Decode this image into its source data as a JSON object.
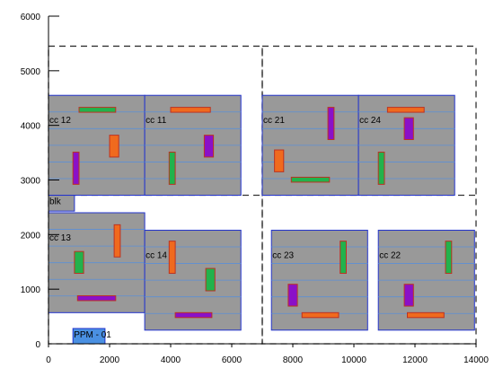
{
  "chart_data": {
    "type": "layout-diagram",
    "xlim": [
      0,
      14000
    ],
    "ylim": [
      0,
      6000
    ],
    "x_ticks": [
      "0",
      "2000",
      "4000",
      "6000",
      "8000",
      "10000",
      "12000",
      "14000"
    ],
    "y_ticks": [
      "0",
      "1000",
      "2000",
      "3000",
      "4000",
      "5000",
      "6000"
    ],
    "dashed_regions": [
      {
        "x0": 0,
        "x1": 7000,
        "y0": 0,
        "y1": 5450
      },
      {
        "x0": 7000,
        "x1": 14000,
        "y0": 0,
        "y1": 5450
      }
    ],
    "dashed_divider_y": 2720,
    "cells": [
      {
        "label": "cc 12",
        "x0": 0,
        "x1": 3150,
        "y0": 2720,
        "y1": 4550
      },
      {
        "label": "cc 11",
        "x0": 3150,
        "x1": 6300,
        "y0": 2720,
        "y1": 4550
      },
      {
        "label": "cc 21",
        "x0": 7000,
        "x1": 10150,
        "y0": 2720,
        "y1": 4550
      },
      {
        "label": "cc 24",
        "x0": 10150,
        "x1": 13300,
        "y0": 2720,
        "y1": 4550
      },
      {
        "label": "cc 13",
        "x0": 0,
        "x1": 3150,
        "y0": 570,
        "y1": 2400
      },
      {
        "label": "cc 14",
        "x0": 3150,
        "x1": 6300,
        "y0": 250,
        "y1": 2080
      },
      {
        "label": "cc 23",
        "x0": 7300,
        "x1": 10450,
        "y0": 250,
        "y1": 2080
      },
      {
        "label": "cc 22",
        "x0": 10800,
        "x1": 13950,
        "y0": 250,
        "y1": 2080
      }
    ],
    "blocks": [
      {
        "label": "blk",
        "x0": 0,
        "x1": 850,
        "y0": 2430,
        "y1": 2720,
        "color": "#999999",
        "edge": "#2233cc"
      },
      {
        "label": "PPM - 01",
        "x0": 800,
        "x1": 1850,
        "y0": 0,
        "y1": 280,
        "color": "#4a90e2",
        "edge": "#2233cc"
      }
    ],
    "bars": [
      {
        "x0": 1000,
        "x1": 2200,
        "y0": 4240,
        "y1": 4330,
        "color": "#22b24c"
      },
      {
        "x0": 2000,
        "x1": 2300,
        "y0": 3420,
        "y1": 3820,
        "color": "#f06a1e"
      },
      {
        "x0": 800,
        "x1": 1000,
        "y0": 2920,
        "y1": 3510,
        "color": "#8a10c8"
      },
      {
        "x0": 4000,
        "x1": 5300,
        "y0": 4240,
        "y1": 4330,
        "color": "#f06a1e"
      },
      {
        "x0": 5100,
        "x1": 5400,
        "y0": 3420,
        "y1": 3820,
        "color": "#8a10c8"
      },
      {
        "x0": 3950,
        "x1": 4150,
        "y0": 2920,
        "y1": 3510,
        "color": "#22b24c"
      },
      {
        "x0": 9150,
        "x1": 9350,
        "y0": 3740,
        "y1": 4330,
        "color": "#8a10c8"
      },
      {
        "x0": 7400,
        "x1": 7700,
        "y0": 3150,
        "y1": 3550,
        "color": "#f06a1e"
      },
      {
        "x0": 7950,
        "x1": 9200,
        "y0": 2960,
        "y1": 3050,
        "color": "#22b24c"
      },
      {
        "x0": 11100,
        "x1": 12300,
        "y0": 4240,
        "y1": 4330,
        "color": "#f06a1e"
      },
      {
        "x0": 11650,
        "x1": 11950,
        "y0": 3740,
        "y1": 4140,
        "color": "#8a10c8"
      },
      {
        "x0": 10800,
        "x1": 11000,
        "y0": 2920,
        "y1": 3510,
        "color": "#22b24c"
      },
      {
        "x0": 2150,
        "x1": 2350,
        "y0": 1590,
        "y1": 2180,
        "color": "#f06a1e"
      },
      {
        "x0": 850,
        "x1": 1150,
        "y0": 1290,
        "y1": 1690,
        "color": "#22b24c"
      },
      {
        "x0": 950,
        "x1": 2200,
        "y0": 790,
        "y1": 880,
        "color": "#8a10c8"
      },
      {
        "x0": 3950,
        "x1": 4150,
        "y0": 1290,
        "y1": 1880,
        "color": "#f06a1e"
      },
      {
        "x0": 5150,
        "x1": 5450,
        "y0": 970,
        "y1": 1380,
        "color": "#22b24c"
      },
      {
        "x0": 4150,
        "x1": 5350,
        "y0": 480,
        "y1": 570,
        "color": "#8a10c8"
      },
      {
        "x0": 9550,
        "x1": 9750,
        "y0": 1290,
        "y1": 1880,
        "color": "#22b24c"
      },
      {
        "x0": 7850,
        "x1": 8150,
        "y0": 690,
        "y1": 1090,
        "color": "#8a10c8"
      },
      {
        "x0": 8300,
        "x1": 9500,
        "y0": 480,
        "y1": 570,
        "color": "#f06a1e"
      },
      {
        "x0": 13000,
        "x1": 13200,
        "y0": 1290,
        "y1": 1880,
        "color": "#22b24c"
      },
      {
        "x0": 11650,
        "x1": 11950,
        "y0": 690,
        "y1": 1090,
        "color": "#8a10c8"
      },
      {
        "x0": 11750,
        "x1": 12950,
        "y0": 480,
        "y1": 570,
        "color": "#f06a1e"
      }
    ],
    "colors": {
      "cell_fill": "#999999",
      "cell_edge": "#2233cc",
      "grid_line": "#5c8fd6",
      "bar_edge": "#bb3322"
    },
    "grid": false
  }
}
